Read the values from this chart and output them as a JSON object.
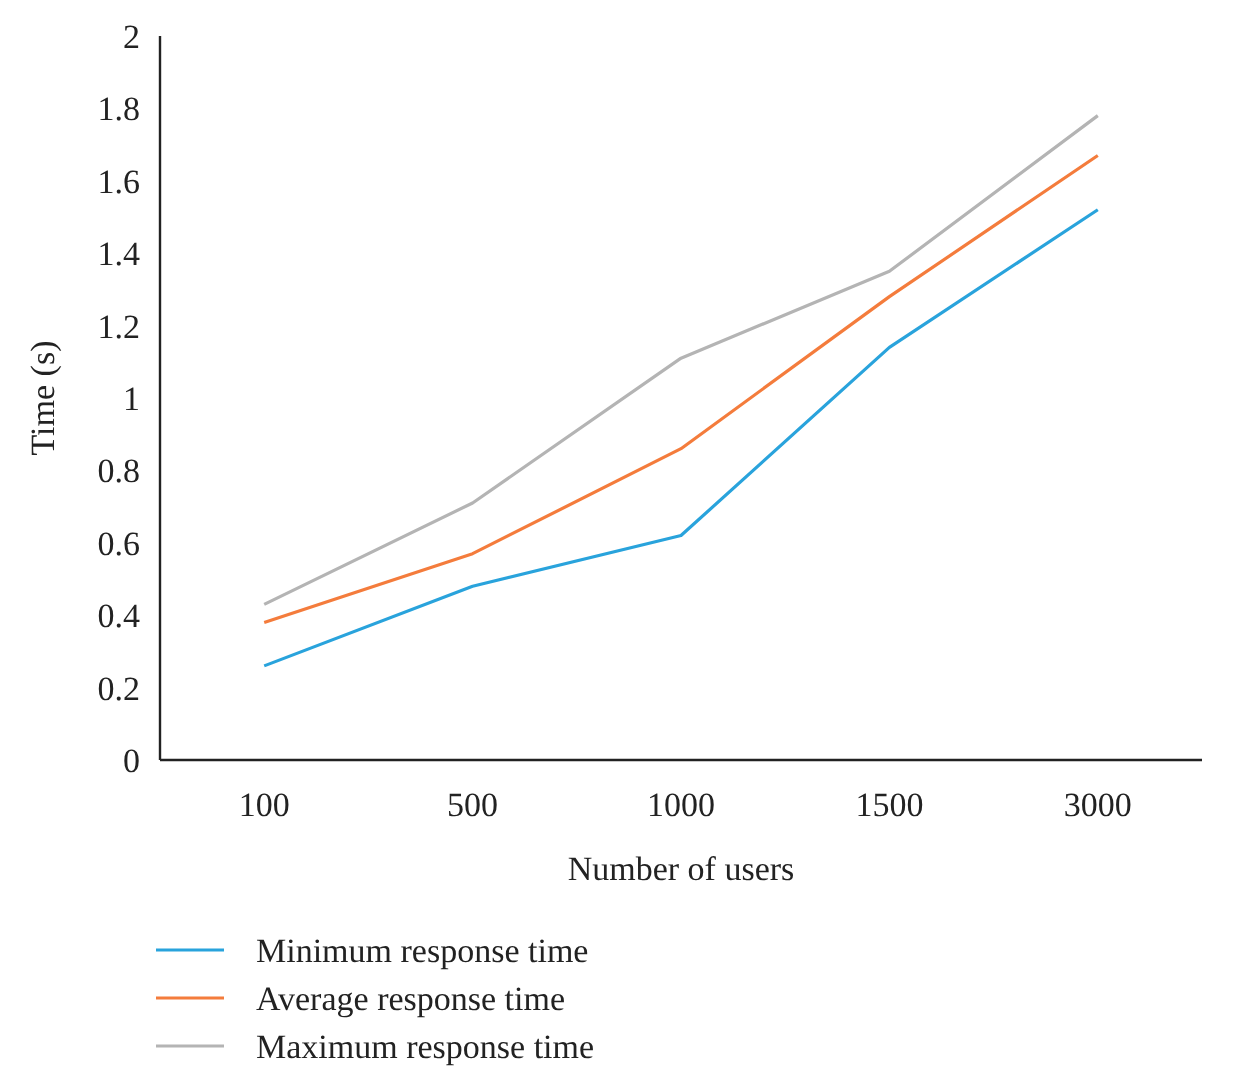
{
  "chart_data": {
    "type": "line",
    "xlabel": "Number of users",
    "ylabel": "Time (s)",
    "categories": [
      "100",
      "500",
      "1000",
      "1500",
      "3000"
    ],
    "series": [
      {
        "name": "Minimum response time",
        "color": "#29a3dc",
        "values": [
          0.26,
          0.48,
          0.62,
          1.14,
          1.52
        ]
      },
      {
        "name": "Average response time",
        "color": "#f47c3c",
        "values": [
          0.38,
          0.57,
          0.86,
          1.28,
          1.67
        ]
      },
      {
        "name": "Maximum response time",
        "color": "#b4b4b4",
        "values": [
          0.43,
          0.71,
          1.11,
          1.35,
          1.78
        ]
      }
    ],
    "ylim": [
      0,
      2
    ],
    "yticks": [
      0,
      0.2,
      0.4,
      0.6,
      0.8,
      1,
      1.2,
      1.4,
      1.6,
      1.8,
      2
    ],
    "grid": false,
    "legend": "bottom",
    "marker": "none",
    "line_style": "solid"
  }
}
